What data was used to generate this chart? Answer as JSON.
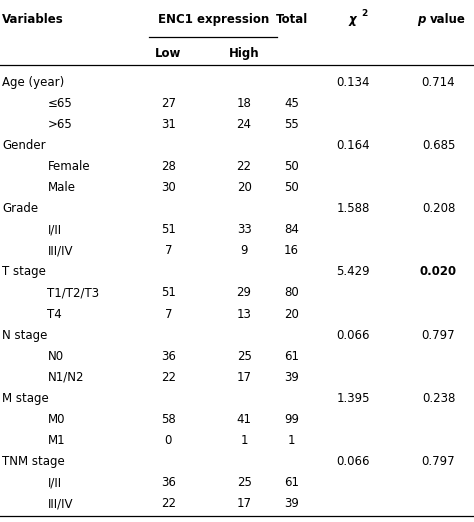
{
  "rows": [
    {
      "label": "Age (year)",
      "indent": false,
      "low": "",
      "high": "",
      "total": "",
      "chi2": "0.134",
      "pval": "0.714",
      "pval_bold": false
    },
    {
      "label": "≤65",
      "indent": true,
      "low": "27",
      "high": "18",
      "total": "45",
      "chi2": "",
      "pval": "",
      "pval_bold": false
    },
    {
      "label": ">65",
      "indent": true,
      "low": "31",
      "high": "24",
      "total": "55",
      "chi2": "",
      "pval": "",
      "pval_bold": false
    },
    {
      "label": "Gender",
      "indent": false,
      "low": "",
      "high": "",
      "total": "",
      "chi2": "0.164",
      "pval": "0.685",
      "pval_bold": false
    },
    {
      "label": "Female",
      "indent": true,
      "low": "28",
      "high": "22",
      "total": "50",
      "chi2": "",
      "pval": "",
      "pval_bold": false
    },
    {
      "label": "Male",
      "indent": true,
      "low": "30",
      "high": "20",
      "total": "50",
      "chi2": "",
      "pval": "",
      "pval_bold": false
    },
    {
      "label": "Grade",
      "indent": false,
      "low": "",
      "high": "",
      "total": "",
      "chi2": "1.588",
      "pval": "0.208",
      "pval_bold": false
    },
    {
      "label": "I/II",
      "indent": true,
      "low": "51",
      "high": "33",
      "total": "84",
      "chi2": "",
      "pval": "",
      "pval_bold": false
    },
    {
      "label": "III/IV",
      "indent": true,
      "low": "7",
      "high": "9",
      "total": "16",
      "chi2": "",
      "pval": "",
      "pval_bold": false
    },
    {
      "label": "T stage",
      "indent": false,
      "low": "",
      "high": "",
      "total": "",
      "chi2": "5.429",
      "pval": "0.020",
      "pval_bold": true
    },
    {
      "label": "T1/T2/T3",
      "indent": true,
      "low": "51",
      "high": "29",
      "total": "80",
      "chi2": "",
      "pval": "",
      "pval_bold": false
    },
    {
      "label": "T4",
      "indent": true,
      "low": "7",
      "high": "13",
      "total": "20",
      "chi2": "",
      "pval": "",
      "pval_bold": false
    },
    {
      "label": "N stage",
      "indent": false,
      "low": "",
      "high": "",
      "total": "",
      "chi2": "0.066",
      "pval": "0.797",
      "pval_bold": false
    },
    {
      "label": "N0",
      "indent": true,
      "low": "36",
      "high": "25",
      "total": "61",
      "chi2": "",
      "pval": "",
      "pval_bold": false
    },
    {
      "label": "N1/N2",
      "indent": true,
      "low": "22",
      "high": "17",
      "total": "39",
      "chi2": "",
      "pval": "",
      "pval_bold": false
    },
    {
      "label": "M stage",
      "indent": false,
      "low": "",
      "high": "",
      "total": "",
      "chi2": "1.395",
      "pval": "0.238",
      "pval_bold": false
    },
    {
      "label": "M0",
      "indent": true,
      "low": "58",
      "high": "41",
      "total": "99",
      "chi2": "",
      "pval": "",
      "pval_bold": false
    },
    {
      "label": "M1",
      "indent": true,
      "low": "0",
      "high": "1",
      "total": "1",
      "chi2": "",
      "pval": "",
      "pval_bold": false
    },
    {
      "label": "TNM stage",
      "indent": false,
      "low": "",
      "high": "",
      "total": "",
      "chi2": "0.066",
      "pval": "0.797",
      "pval_bold": false
    },
    {
      "label": "I/II",
      "indent": true,
      "low": "36",
      "high": "25",
      "total": "61",
      "chi2": "",
      "pval": "",
      "pval_bold": false
    },
    {
      "label": "III/IV",
      "indent": true,
      "low": "22",
      "high": "17",
      "total": "39",
      "chi2": "",
      "pval": "",
      "pval_bold": false
    }
  ],
  "col_x_norm": {
    "var_main": 0.005,
    "var_indent": 0.1,
    "low": 0.355,
    "high": 0.485,
    "total": 0.615,
    "chi2": 0.745,
    "pval": 0.885
  },
  "fig_width": 4.74,
  "fig_height": 5.22,
  "font_size": 8.5,
  "header_font_size": 8.5,
  "bg_color": "#ffffff",
  "line_color": "#000000",
  "text_color": "#000000"
}
